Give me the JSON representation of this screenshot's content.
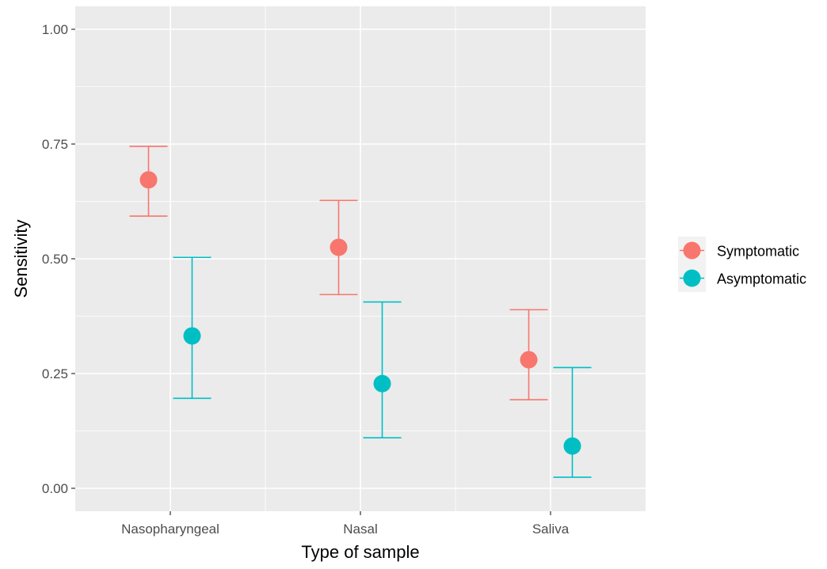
{
  "chart_data": {
    "type": "scatter",
    "title": "",
    "xlabel": "Type of sample",
    "ylabel": "Sensitivity",
    "categories": [
      "Nasopharyngeal",
      "Nasal",
      "Saliva"
    ],
    "ylim": [
      -0.05,
      1.05
    ],
    "yticks": [
      0.0,
      0.25,
      0.5,
      0.75,
      1.0
    ],
    "ytick_labels": [
      "0.00",
      "0.25",
      "0.50",
      "0.75",
      "1.00"
    ],
    "grid": true,
    "legend": "right",
    "series": [
      {
        "name": "Symptomatic",
        "color": "#F8766D",
        "values": [
          0.672,
          0.525,
          0.28
        ],
        "lower": [
          0.593,
          0.422,
          0.193
        ],
        "upper": [
          0.745,
          0.627,
          0.389
        ]
      },
      {
        "name": "Asymptomatic",
        "color": "#00BFC4",
        "values": [
          0.332,
          0.228,
          0.092
        ],
        "lower": [
          0.196,
          0.11,
          0.024
        ],
        "upper": [
          0.503,
          0.406,
          0.263
        ]
      }
    ]
  }
}
